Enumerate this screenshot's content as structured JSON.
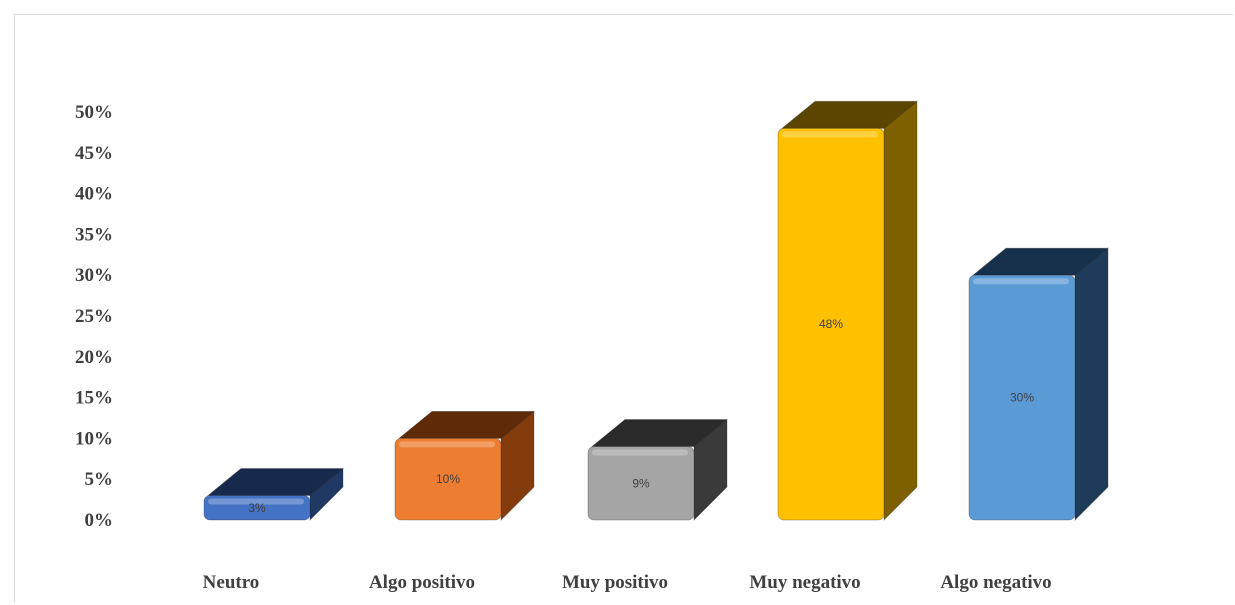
{
  "chart_data": {
    "type": "bar",
    "title": "",
    "xlabel": "",
    "ylabel": "",
    "categories": [
      "Neutro",
      "Algo positivo",
      "Muy positivo",
      "Muy negativo",
      "Algo negativo"
    ],
    "values": [
      3,
      10,
      9,
      48,
      30
    ],
    "data_labels": [
      "3%",
      "10%",
      "9%",
      "48%",
      "30%"
    ],
    "ylim": [
      0,
      50
    ],
    "yticks": [
      "0%",
      "5%",
      "10%",
      "15%",
      "20%",
      "25%",
      "30%",
      "35%",
      "40%",
      "45%",
      "50%"
    ],
    "grid": false,
    "legend": "none",
    "style": "3d-column",
    "colors": {
      "front": [
        "#4472c4",
        "#ed7d31",
        "#a5a5a5",
        "#ffc000",
        "#5b9bd5"
      ],
      "side": [
        "#1f3864",
        "#843c0c",
        "#3a3a3a",
        "#7f6000",
        "#1f3b5a"
      ],
      "top": [
        "#172a4c",
        "#5e2a08",
        "#2b2b2b",
        "#5c4500",
        "#17304b"
      ]
    }
  }
}
